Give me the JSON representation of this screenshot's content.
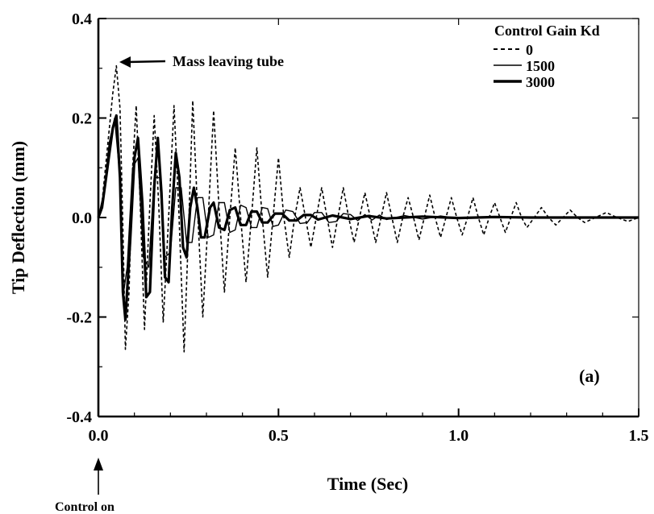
{
  "chart_data": {
    "type": "line",
    "title": "",
    "xlabel": "Time (Sec)",
    "ylabel": "Tip Deflection (mm)",
    "xlim": [
      0.0,
      1.5
    ],
    "ylim": [
      -0.4,
      0.4
    ],
    "x_ticks": [
      {
        "value": 0.0,
        "label": "0.0"
      },
      {
        "value": 0.5,
        "label": "0.5"
      },
      {
        "value": 1.0,
        "label": "1.0"
      },
      {
        "value": 1.5,
        "label": "1.5"
      }
    ],
    "y_ticks": [
      {
        "value": 0.4,
        "label": "0.4"
      },
      {
        "value": 0.2,
        "label": "0.2"
      },
      {
        "value": 0.0,
        "label": "0.0"
      },
      {
        "value": -0.2,
        "label": "-0.2"
      },
      {
        "value": -0.4,
        "label": "-0.4"
      }
    ],
    "grid": false,
    "panel_label": "(a)",
    "legend": {
      "title": "Control Gain Kd",
      "placement": "top-right",
      "entries": [
        {
          "label": "0",
          "style": "dashed"
        },
        {
          "label": "1500",
          "style": "thin"
        },
        {
          "label": "3000",
          "style": "thick"
        }
      ]
    },
    "annotations": [
      {
        "text": "Mass leaving tube",
        "x": 0.05,
        "y": 0.31
      },
      {
        "text": "Control on",
        "x": 0.0,
        "y": -0.4
      }
    ],
    "series": [
      {
        "name": "0",
        "style": "dashed",
        "points": [
          [
            0.0,
            0.0
          ],
          [
            0.01,
            0.03
          ],
          [
            0.025,
            0.14
          ],
          [
            0.04,
            0.25
          ],
          [
            0.05,
            0.305
          ],
          [
            0.06,
            0.22
          ],
          [
            0.068,
            -0.02
          ],
          [
            0.075,
            -0.265
          ],
          [
            0.085,
            -0.15
          ],
          [
            0.095,
            0.1
          ],
          [
            0.105,
            0.225
          ],
          [
            0.115,
            0.05
          ],
          [
            0.128,
            -0.225
          ],
          [
            0.14,
            -0.02
          ],
          [
            0.155,
            0.205
          ],
          [
            0.168,
            0.02
          ],
          [
            0.18,
            -0.21
          ],
          [
            0.195,
            0.0
          ],
          [
            0.21,
            0.225
          ],
          [
            0.223,
            0.02
          ],
          [
            0.238,
            -0.27
          ],
          [
            0.25,
            -0.03
          ],
          [
            0.262,
            0.235
          ],
          [
            0.275,
            0.02
          ],
          [
            0.29,
            -0.2
          ],
          [
            0.305,
            0.0
          ],
          [
            0.32,
            0.215
          ],
          [
            0.335,
            0.02
          ],
          [
            0.35,
            -0.15
          ],
          [
            0.365,
            0.0
          ],
          [
            0.38,
            0.14
          ],
          [
            0.395,
            0.0
          ],
          [
            0.41,
            -0.13
          ],
          [
            0.425,
            0.0
          ],
          [
            0.44,
            0.14
          ],
          [
            0.455,
            0.0
          ],
          [
            0.47,
            -0.12
          ],
          [
            0.485,
            0.0
          ],
          [
            0.5,
            0.12
          ],
          [
            0.515,
            0.0
          ],
          [
            0.53,
            -0.08
          ],
          [
            0.545,
            0.0
          ],
          [
            0.56,
            0.06
          ],
          [
            0.575,
            0.0
          ],
          [
            0.59,
            -0.06
          ],
          [
            0.605,
            0.0
          ],
          [
            0.62,
            0.06
          ],
          [
            0.635,
            0.0
          ],
          [
            0.65,
            -0.06
          ],
          [
            0.665,
            0.0
          ],
          [
            0.68,
            0.06
          ],
          [
            0.695,
            0.0
          ],
          [
            0.71,
            -0.05
          ],
          [
            0.725,
            0.0
          ],
          [
            0.74,
            0.05
          ],
          [
            0.755,
            0.0
          ],
          [
            0.77,
            -0.05
          ],
          [
            0.785,
            0.0
          ],
          [
            0.8,
            0.05
          ],
          [
            0.815,
            0.0
          ],
          [
            0.83,
            -0.05
          ],
          [
            0.845,
            0.0
          ],
          [
            0.86,
            0.04
          ],
          [
            0.875,
            0.0
          ],
          [
            0.89,
            -0.045
          ],
          [
            0.905,
            0.0
          ],
          [
            0.92,
            0.045
          ],
          [
            0.935,
            0.0
          ],
          [
            0.95,
            -0.04
          ],
          [
            0.965,
            0.0
          ],
          [
            0.98,
            0.04
          ],
          [
            0.995,
            0.0
          ],
          [
            1.01,
            -0.035
          ],
          [
            1.025,
            0.0
          ],
          [
            1.04,
            0.04
          ],
          [
            1.055,
            0.0
          ],
          [
            1.07,
            -0.035
          ],
          [
            1.085,
            0.0
          ],
          [
            1.1,
            0.03
          ],
          [
            1.115,
            0.0
          ],
          [
            1.13,
            -0.03
          ],
          [
            1.145,
            0.0
          ],
          [
            1.16,
            0.03
          ],
          [
            1.175,
            0.0
          ],
          [
            1.19,
            -0.02
          ],
          [
            1.21,
            0.0
          ],
          [
            1.23,
            0.02
          ],
          [
            1.25,
            0.0
          ],
          [
            1.27,
            -0.015
          ],
          [
            1.29,
            0.0
          ],
          [
            1.31,
            0.015
          ],
          [
            1.33,
            0.0
          ],
          [
            1.35,
            -0.01
          ],
          [
            1.38,
            0.0
          ],
          [
            1.41,
            0.01
          ],
          [
            1.44,
            0.0
          ],
          [
            1.47,
            -0.008
          ],
          [
            1.5,
            0.0
          ]
        ]
      },
      {
        "name": "1500",
        "style": "thin",
        "points": [
          [
            0.0,
            0.0
          ],
          [
            0.015,
            0.05
          ],
          [
            0.03,
            0.15
          ],
          [
            0.045,
            0.2
          ],
          [
            0.06,
            0.08
          ],
          [
            0.07,
            -0.15
          ],
          [
            0.08,
            -0.1
          ],
          [
            0.095,
            0.1
          ],
          [
            0.11,
            0.12
          ],
          [
            0.125,
            -0.08
          ],
          [
            0.14,
            -0.1
          ],
          [
            0.155,
            0.08
          ],
          [
            0.17,
            0.08
          ],
          [
            0.185,
            -0.08
          ],
          [
            0.2,
            -0.07
          ],
          [
            0.215,
            0.06
          ],
          [
            0.23,
            0.06
          ],
          [
            0.245,
            -0.05
          ],
          [
            0.26,
            -0.05
          ],
          [
            0.275,
            0.04
          ],
          [
            0.29,
            0.04
          ],
          [
            0.305,
            -0.04
          ],
          [
            0.32,
            -0.035
          ],
          [
            0.335,
            0.03
          ],
          [
            0.35,
            0.03
          ],
          [
            0.365,
            -0.03
          ],
          [
            0.38,
            -0.025
          ],
          [
            0.395,
            0.025
          ],
          [
            0.41,
            0.02
          ],
          [
            0.425,
            -0.02
          ],
          [
            0.44,
            -0.02
          ],
          [
            0.455,
            0.02
          ],
          [
            0.47,
            0.018
          ],
          [
            0.485,
            -0.018
          ],
          [
            0.5,
            -0.015
          ],
          [
            0.52,
            0.015
          ],
          [
            0.54,
            0.012
          ],
          [
            0.56,
            -0.012
          ],
          [
            0.58,
            -0.01
          ],
          [
            0.6,
            0.01
          ],
          [
            0.62,
            0.01
          ],
          [
            0.64,
            -0.01
          ],
          [
            0.66,
            -0.008
          ],
          [
            0.68,
            0.008
          ],
          [
            0.7,
            0.006
          ],
          [
            0.72,
            -0.006
          ],
          [
            0.74,
            0.006
          ],
          [
            0.76,
            -0.005
          ],
          [
            0.78,
            0.005
          ],
          [
            0.8,
            -0.004
          ],
          [
            0.85,
            0.004
          ],
          [
            0.9,
            -0.003
          ],
          [
            0.95,
            0.003
          ],
          [
            1.0,
            -0.002
          ],
          [
            1.1,
            0.002
          ],
          [
            1.2,
            -0.001
          ],
          [
            1.3,
            0.001
          ],
          [
            1.4,
            0.0
          ],
          [
            1.5,
            0.0
          ]
        ]
      },
      {
        "name": "3000",
        "style": "thick",
        "points": [
          [
            0.0,
            0.0
          ],
          [
            0.01,
            0.02
          ],
          [
            0.025,
            0.1
          ],
          [
            0.04,
            0.18
          ],
          [
            0.05,
            0.205
          ],
          [
            0.06,
            0.08
          ],
          [
            0.068,
            -0.15
          ],
          [
            0.075,
            -0.205
          ],
          [
            0.088,
            -0.05
          ],
          [
            0.1,
            0.12
          ],
          [
            0.11,
            0.16
          ],
          [
            0.122,
            0.03
          ],
          [
            0.133,
            -0.16
          ],
          [
            0.143,
            -0.15
          ],
          [
            0.155,
            0.06
          ],
          [
            0.165,
            0.16
          ],
          [
            0.175,
            0.05
          ],
          [
            0.185,
            -0.12
          ],
          [
            0.195,
            -0.13
          ],
          [
            0.205,
            0.02
          ],
          [
            0.215,
            0.13
          ],
          [
            0.225,
            0.08
          ],
          [
            0.235,
            -0.06
          ],
          [
            0.245,
            -0.08
          ],
          [
            0.255,
            0.02
          ],
          [
            0.265,
            0.06
          ],
          [
            0.275,
            0.02
          ],
          [
            0.285,
            -0.04
          ],
          [
            0.295,
            -0.04
          ],
          [
            0.31,
            0.02
          ],
          [
            0.32,
            0.03
          ],
          [
            0.335,
            -0.02
          ],
          [
            0.35,
            -0.025
          ],
          [
            0.365,
            0.015
          ],
          [
            0.38,
            0.02
          ],
          [
            0.395,
            -0.015
          ],
          [
            0.41,
            -0.015
          ],
          [
            0.425,
            0.012
          ],
          [
            0.44,
            0.012
          ],
          [
            0.455,
            -0.01
          ],
          [
            0.47,
            -0.01
          ],
          [
            0.49,
            0.008
          ],
          [
            0.51,
            0.008
          ],
          [
            0.53,
            -0.006
          ],
          [
            0.55,
            -0.006
          ],
          [
            0.57,
            0.005
          ],
          [
            0.59,
            0.005
          ],
          [
            0.61,
            -0.004
          ],
          [
            0.65,
            0.004
          ],
          [
            0.7,
            -0.003
          ],
          [
            0.75,
            0.003
          ],
          [
            0.8,
            -0.002
          ],
          [
            0.9,
            0.002
          ],
          [
            1.0,
            -0.001
          ],
          [
            1.1,
            0.001
          ],
          [
            1.2,
            0.0
          ],
          [
            1.5,
            0.0
          ]
        ]
      }
    ]
  }
}
